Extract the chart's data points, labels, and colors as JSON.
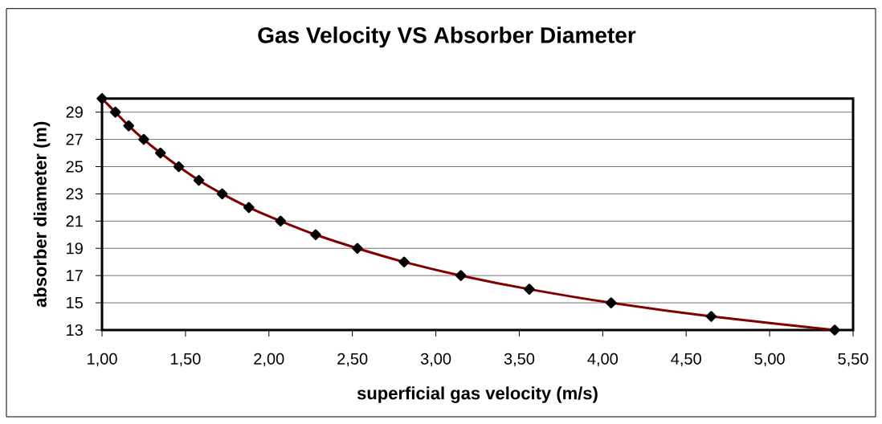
{
  "chart_data": {
    "type": "line",
    "title": "Gas Velocity VS Absorber Diameter",
    "xlabel": "superficial gas velocity (m/s)",
    "ylabel": "absorber diameter (m)",
    "x": [
      1.0,
      1.08,
      1.16,
      1.25,
      1.35,
      1.46,
      1.58,
      1.72,
      1.88,
      2.07,
      2.28,
      2.53,
      2.81,
      3.15,
      3.56,
      4.05,
      4.65,
      5.39
    ],
    "series": [
      {
        "color": "#800000",
        "values": [
          30,
          29,
          28,
          27,
          26,
          25,
          24,
          23,
          22,
          21,
          20,
          19,
          18,
          17,
          16,
          15,
          14,
          13
        ]
      }
    ],
    "xlim": [
      1.0,
      5.5
    ],
    "ylim": [
      13,
      30
    ],
    "xticks": [
      {
        "value": 1.0,
        "label": "1,00"
      },
      {
        "value": 1.5,
        "label": "1,50"
      },
      {
        "value": 2.0,
        "label": "2,00"
      },
      {
        "value": 2.5,
        "label": "2,50"
      },
      {
        "value": 3.0,
        "label": "3,00"
      },
      {
        "value": 3.5,
        "label": "3,50"
      },
      {
        "value": 4.0,
        "label": "4,00"
      },
      {
        "value": 4.5,
        "label": "4,50"
      },
      {
        "value": 5.0,
        "label": "5,00"
      },
      {
        "value": 5.5,
        "label": "5,50"
      }
    ],
    "yticks": [
      13,
      15,
      17,
      19,
      21,
      23,
      25,
      27,
      29
    ],
    "grid": "y",
    "marker": "diamond",
    "line_style": "solid"
  }
}
